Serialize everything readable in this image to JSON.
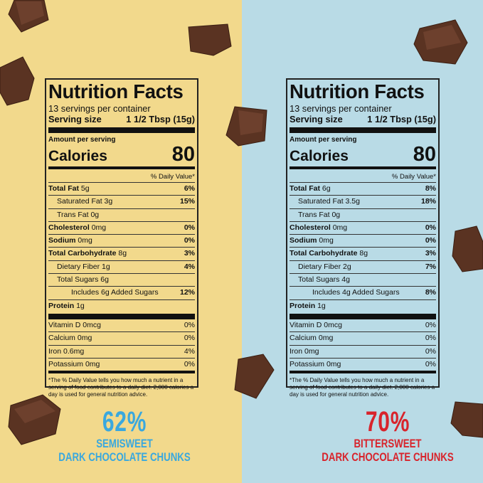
{
  "panels": [
    {
      "label": {
        "title": "Nutrition Facts",
        "servings": "13 servings per container",
        "serving_size_label": "Serving size",
        "serving_size": "1 1/2 Tbsp (15g)",
        "amount_per_serving": "Amount per serving",
        "calories_label": "Calories",
        "calories": 80,
        "daily_value_header": "% Daily Value*",
        "nutrients": [
          {
            "name": "Total Fat",
            "amount": "5g",
            "dv": "6%"
          },
          {
            "name": "Saturated Fat",
            "amount": "3g",
            "dv": "15%"
          },
          {
            "name": "Trans Fat",
            "amount": "0g"
          },
          {
            "name": "Cholesterol",
            "amount": "0mg",
            "dv": "0%"
          },
          {
            "name": "Sodium",
            "amount": "0mg",
            "dv": "0%"
          },
          {
            "name": "Total Carbohydrate",
            "amount": "8g",
            "dv": "3%"
          },
          {
            "name": "Dietary Fiber",
            "amount": "1g",
            "dv": "4%"
          },
          {
            "name": "Total Sugars",
            "amount": "6g"
          },
          {
            "name": "Includes 6g Added Sugars",
            "dv": "12%"
          },
          {
            "name": "Protein",
            "amount": "1g"
          }
        ],
        "vitamins": [
          {
            "name": "Vitamin D",
            "amount": "0mcg",
            "dv": "0%"
          },
          {
            "name": "Calcium",
            "amount": "0mg",
            "dv": "0%"
          },
          {
            "name": "Iron",
            "amount": "0.6mg",
            "dv": "4%"
          },
          {
            "name": "Potassium",
            "amount": "0mg",
            "dv": "0%"
          }
        ],
        "footnote": "*The % Daily Value tells you how much a nutrient in a serving of food contributes to a daily diet. 2,000 calories a day is used for general nutrition advice."
      },
      "percent": "62%",
      "name_line1": "SEMISWEET",
      "name_line2": "DARK CHOCOLATE CHUNKS"
    },
    {
      "label": {
        "title": "Nutrition Facts",
        "servings": "13 servings per container",
        "serving_size_label": "Serving size",
        "serving_size": "1 1/2 Tbsp (15g)",
        "amount_per_serving": "Amount per serving",
        "calories_label": "Calories",
        "calories": 80,
        "daily_value_header": "% Daily Value*",
        "nutrients": [
          {
            "name": "Total Fat",
            "amount": "6g",
            "dv": "8%"
          },
          {
            "name": "Saturated Fat",
            "amount": "3.5g",
            "dv": "18%"
          },
          {
            "name": "Trans Fat",
            "amount": "0g"
          },
          {
            "name": "Cholesterol",
            "amount": "0mg",
            "dv": "0%"
          },
          {
            "name": "Sodium",
            "amount": "0mg",
            "dv": "0%"
          },
          {
            "name": "Total Carbohydrate",
            "amount": "8g",
            "dv": "3%"
          },
          {
            "name": "Dietary Fiber",
            "amount": "2g",
            "dv": "7%"
          },
          {
            "name": "Total Sugars",
            "amount": "4g"
          },
          {
            "name": "Includes 4g Added Sugars",
            "dv": "8%"
          },
          {
            "name": "Protein",
            "amount": "1g"
          }
        ],
        "vitamins": [
          {
            "name": "Vitamin D",
            "amount": "0mcg",
            "dv": "0%"
          },
          {
            "name": "Calcium",
            "amount": "0mg",
            "dv": "0%"
          },
          {
            "name": "Iron",
            "amount": "0mg",
            "dv": "0%"
          },
          {
            "name": "Potassium",
            "amount": "0mg",
            "dv": "0%"
          }
        ],
        "footnote": "*The % Daily Value tells you how much a nutrient in a serving of food contributes to a daily diet. 2,000 calories a day is used for general nutrition advice."
      },
      "percent": "70%",
      "name_line1": "BITTERSWEET",
      "name_line2": "DARK CHOCOLATE CHUNKS"
    }
  ]
}
